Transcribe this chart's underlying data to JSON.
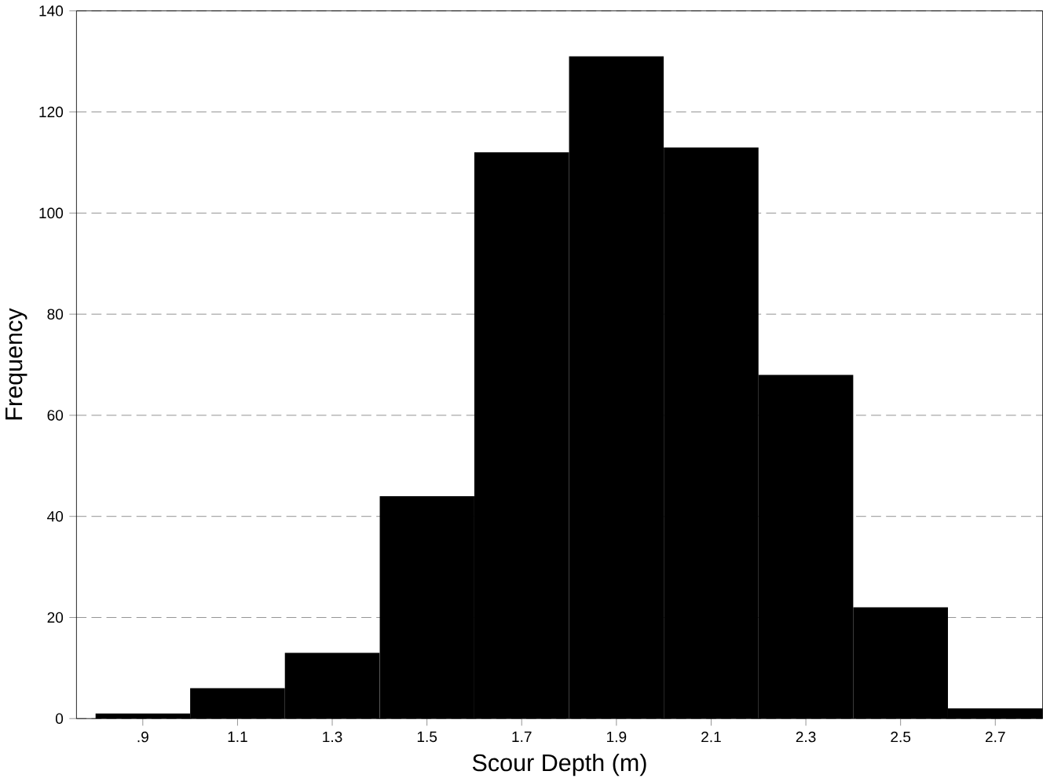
{
  "chart_data": {
    "type": "histogram",
    "xlabel": "Scour Depth (m)",
    "ylabel": "Frequency",
    "bins": [
      0.8,
      1.0,
      1.2,
      1.4,
      1.6,
      1.8,
      2.0,
      2.2,
      2.4,
      2.6,
      2.8
    ],
    "values": [
      1,
      6,
      13,
      44,
      112,
      131,
      113,
      68,
      22,
      2
    ],
    "color": "#000000",
    "xlim": [
      0.76,
      2.8
    ],
    "ylim": [
      0,
      140
    ],
    "xticks": [
      {
        "value": 0.9,
        "label": ".9"
      },
      {
        "value": 1.1,
        "label": "1.1"
      },
      {
        "value": 1.3,
        "label": "1.3"
      },
      {
        "value": 1.5,
        "label": "1.5"
      },
      {
        "value": 1.7,
        "label": "1.7"
      },
      {
        "value": 1.9,
        "label": "1.9"
      },
      {
        "value": 2.1,
        "label": "2.1"
      },
      {
        "value": 2.3,
        "label": "2.3"
      },
      {
        "value": 2.5,
        "label": "2.5"
      },
      {
        "value": 2.7,
        "label": "2.7"
      }
    ],
    "yticks": [
      0,
      20,
      40,
      60,
      80,
      100,
      120,
      140
    ],
    "grid": "y"
  }
}
